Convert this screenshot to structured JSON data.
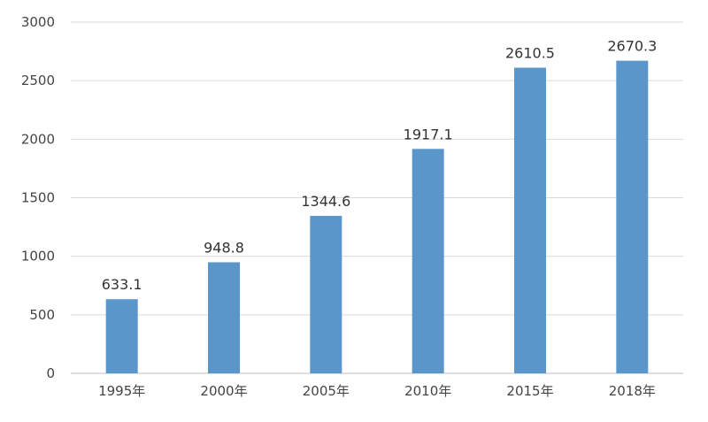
{
  "chart_data": {
    "type": "bar",
    "categories": [
      "1995年",
      "2000年",
      "2005年",
      "2010年",
      "2015年",
      "2018年"
    ],
    "values": [
      633.1,
      948.8,
      1344.6,
      1917.1,
      2610.5,
      2670.3
    ],
    "data_labels": [
      "633.1",
      "948.8",
      "1344.6",
      "1917.1",
      "2610.5",
      "2670.3"
    ],
    "y_ticks": [
      0,
      500,
      1000,
      1500,
      2000,
      2500,
      3000
    ],
    "ylim": [
      0,
      3000
    ],
    "grid": true,
    "legend": "none",
    "bar_color": "#5b96cb"
  }
}
